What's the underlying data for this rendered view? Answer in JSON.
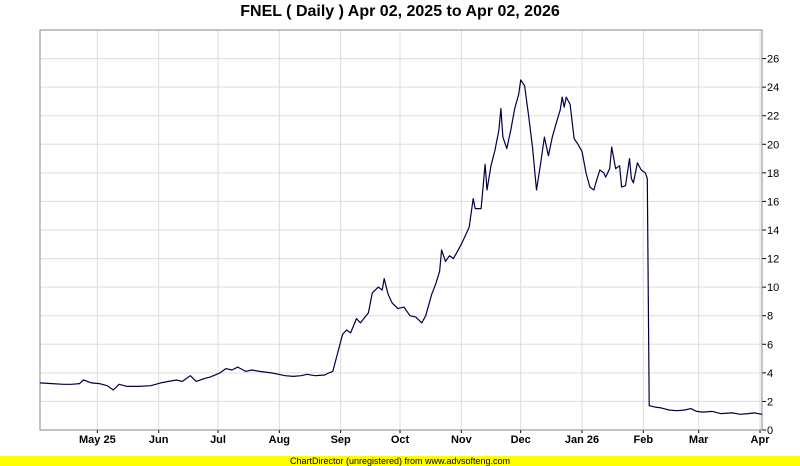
{
  "chart_data": {
    "type": "line",
    "title": "FNEL ( Daily ) Apr 02, 2025 to Apr 02, 2026",
    "xlabel": "",
    "ylabel": "",
    "ylim": [
      0,
      28
    ],
    "y_ticks": [
      0,
      2,
      4,
      6,
      8,
      10,
      12,
      14,
      16,
      18,
      20,
      22,
      24,
      26
    ],
    "grid": true,
    "y_axis_side": "right",
    "line_color": "#000044",
    "x_ticks": [
      {
        "label": "May 25",
        "date": "2025-05-01"
      },
      {
        "label": "Jun",
        "date": "2025-06-01"
      },
      {
        "label": "Jul",
        "date": "2025-07-01"
      },
      {
        "label": "Aug",
        "date": "2025-08-01"
      },
      {
        "label": "Sep",
        "date": "2025-09-01"
      },
      {
        "label": "Oct",
        "date": "2025-10-01"
      },
      {
        "label": "Nov",
        "date": "2025-11-01"
      },
      {
        "label": "Dec",
        "date": "2025-12-01"
      },
      {
        "label": "Jan 26",
        "date": "2026-01-01"
      },
      {
        "label": "Feb",
        "date": "2026-02-01"
      },
      {
        "label": "Mar",
        "date": "2026-03-01"
      },
      {
        "label": "Apr",
        "date": "2026-04-01"
      }
    ],
    "x_range": [
      "2025-04-02",
      "2026-04-02"
    ],
    "series": [
      {
        "points": [
          [
            "2025-04-02",
            3.3
          ],
          [
            "2025-04-08",
            3.25
          ],
          [
            "2025-04-14",
            3.2
          ],
          [
            "2025-04-18",
            3.2
          ],
          [
            "2025-04-22",
            3.25
          ],
          [
            "2025-04-24",
            3.5
          ],
          [
            "2025-04-28",
            3.3
          ],
          [
            "2025-05-02",
            3.25
          ],
          [
            "2025-05-06",
            3.1
          ],
          [
            "2025-05-09",
            2.8
          ],
          [
            "2025-05-12",
            3.2
          ],
          [
            "2025-05-16",
            3.05
          ],
          [
            "2025-05-22",
            3.05
          ],
          [
            "2025-05-28",
            3.1
          ],
          [
            "2025-06-02",
            3.3
          ],
          [
            "2025-06-06",
            3.4
          ],
          [
            "2025-06-10",
            3.5
          ],
          [
            "2025-06-13",
            3.4
          ],
          [
            "2025-06-17",
            3.8
          ],
          [
            "2025-06-20",
            3.4
          ],
          [
            "2025-06-24",
            3.6
          ],
          [
            "2025-06-27",
            3.7
          ],
          [
            "2025-07-02",
            4.0
          ],
          [
            "2025-07-05",
            4.3
          ],
          [
            "2025-07-08",
            4.2
          ],
          [
            "2025-07-11",
            4.4
          ],
          [
            "2025-07-15",
            4.1
          ],
          [
            "2025-07-18",
            4.2
          ],
          [
            "2025-07-22",
            4.1
          ],
          [
            "2025-07-28",
            4.0
          ],
          [
            "2025-08-04",
            3.8
          ],
          [
            "2025-08-08",
            3.75
          ],
          [
            "2025-08-12",
            3.8
          ],
          [
            "2025-08-15",
            3.9
          ],
          [
            "2025-08-19",
            3.8
          ],
          [
            "2025-08-24",
            3.85
          ],
          [
            "2025-08-26",
            4.0
          ],
          [
            "2025-08-28",
            4.1
          ],
          [
            "2025-09-02",
            6.7
          ],
          [
            "2025-09-04",
            7.0
          ],
          [
            "2025-09-06",
            6.8
          ],
          [
            "2025-09-09",
            7.8
          ],
          [
            "2025-09-11",
            7.5
          ],
          [
            "2025-09-15",
            8.2
          ],
          [
            "2025-09-17",
            9.6
          ],
          [
            "2025-09-20",
            10.0
          ],
          [
            "2025-09-22",
            9.8
          ],
          [
            "2025-09-23",
            10.6
          ],
          [
            "2025-09-25",
            9.5
          ],
          [
            "2025-09-27",
            8.9
          ],
          [
            "2025-09-30",
            8.5
          ],
          [
            "2025-10-03",
            8.6
          ],
          [
            "2025-10-06",
            8.0
          ],
          [
            "2025-10-09",
            7.9
          ],
          [
            "2025-10-12",
            7.5
          ],
          [
            "2025-10-14",
            8.0
          ],
          [
            "2025-10-17",
            9.5
          ],
          [
            "2025-10-19",
            10.2
          ],
          [
            "2025-10-21",
            11.1
          ],
          [
            "2025-10-22",
            12.6
          ],
          [
            "2025-10-24",
            11.8
          ],
          [
            "2025-10-26",
            12.2
          ],
          [
            "2025-10-28",
            12.0
          ],
          [
            "2025-10-30",
            12.5
          ],
          [
            "2025-11-01",
            13.0
          ],
          [
            "2025-11-03",
            13.6
          ],
          [
            "2025-11-05",
            14.2
          ],
          [
            "2025-11-07",
            16.2
          ],
          [
            "2025-11-08",
            15.5
          ],
          [
            "2025-11-11",
            15.5
          ],
          [
            "2025-11-13",
            18.6
          ],
          [
            "2025-11-14",
            16.8
          ],
          [
            "2025-11-16",
            18.5
          ],
          [
            "2025-11-18",
            19.6
          ],
          [
            "2025-11-20",
            21.0
          ],
          [
            "2025-11-21",
            22.5
          ],
          [
            "2025-11-22",
            20.5
          ],
          [
            "2025-11-24",
            19.7
          ],
          [
            "2025-11-26",
            21.0
          ],
          [
            "2025-11-28",
            22.5
          ],
          [
            "2025-11-30",
            23.5
          ],
          [
            "2025-12-01",
            24.5
          ],
          [
            "2025-12-03",
            24.1
          ],
          [
            "2025-12-05",
            22.0
          ],
          [
            "2025-12-07",
            19.8
          ],
          [
            "2025-12-09",
            16.8
          ],
          [
            "2025-12-11",
            18.6
          ],
          [
            "2025-12-13",
            20.5
          ],
          [
            "2025-12-15",
            19.2
          ],
          [
            "2025-12-17",
            20.5
          ],
          [
            "2025-12-19",
            21.5
          ],
          [
            "2025-12-21",
            22.4
          ],
          [
            "2025-12-22",
            23.3
          ],
          [
            "2025-12-23",
            22.6
          ],
          [
            "2025-12-24",
            23.3
          ],
          [
            "2025-12-26",
            22.8
          ],
          [
            "2025-12-28",
            20.4
          ],
          [
            "2025-12-30",
            20.0
          ],
          [
            "2026-01-01",
            19.5
          ],
          [
            "2026-01-03",
            18.0
          ],
          [
            "2026-01-05",
            17.0
          ],
          [
            "2026-01-07",
            16.8
          ],
          [
            "2026-01-08",
            17.3
          ],
          [
            "2026-01-10",
            18.2
          ],
          [
            "2026-01-12",
            18.0
          ],
          [
            "2026-01-13",
            17.7
          ],
          [
            "2026-01-15",
            18.3
          ],
          [
            "2026-01-16",
            19.8
          ],
          [
            "2026-01-18",
            18.3
          ],
          [
            "2026-01-20",
            18.5
          ],
          [
            "2026-01-21",
            17.0
          ],
          [
            "2026-01-23",
            17.1
          ],
          [
            "2026-01-25",
            19.0
          ],
          [
            "2026-01-26",
            17.6
          ],
          [
            "2026-01-27",
            17.3
          ],
          [
            "2026-01-29",
            18.7
          ],
          [
            "2026-01-31",
            18.2
          ],
          [
            "2026-02-02",
            18.0
          ],
          [
            "2026-02-03",
            17.6
          ],
          [
            "2026-02-04",
            1.7
          ],
          [
            "2026-02-07",
            1.6
          ],
          [
            "2026-02-10",
            1.55
          ],
          [
            "2026-02-14",
            1.4
          ],
          [
            "2026-02-18",
            1.35
          ],
          [
            "2026-02-22",
            1.4
          ],
          [
            "2026-02-25",
            1.5
          ],
          [
            "2026-02-28",
            1.3
          ],
          [
            "2026-03-03",
            1.25
          ],
          [
            "2026-03-08",
            1.3
          ],
          [
            "2026-03-12",
            1.15
          ],
          [
            "2026-03-18",
            1.2
          ],
          [
            "2026-03-22",
            1.1
          ],
          [
            "2026-03-26",
            1.15
          ],
          [
            "2026-03-29",
            1.2
          ],
          [
            "2026-04-02",
            1.1
          ]
        ]
      }
    ]
  },
  "footer": {
    "text": "ChartDirector (unregistered) from www.advsofteng.com"
  }
}
